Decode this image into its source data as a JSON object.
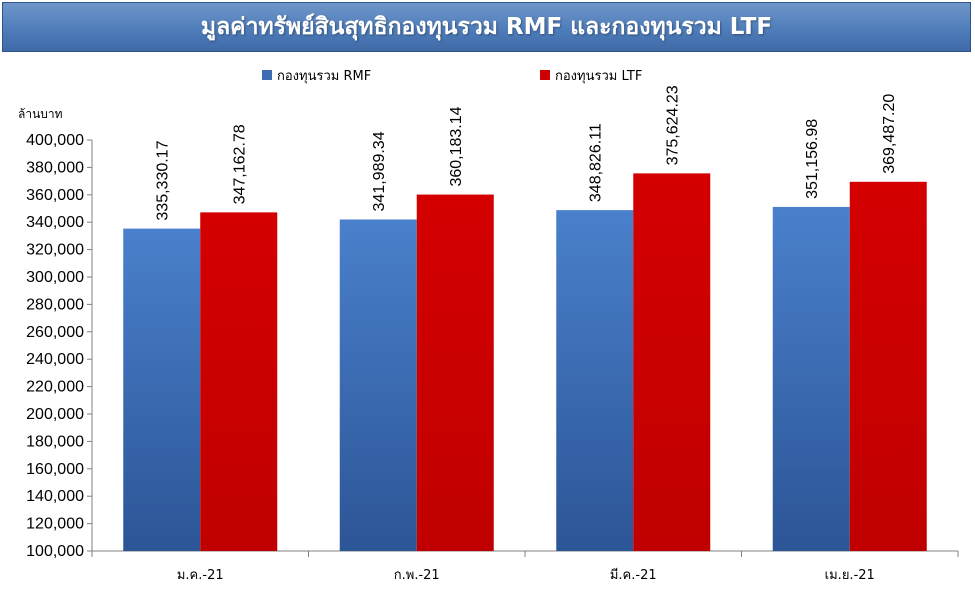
{
  "title": "มูลค่าทรัพย์สินสุทธิกองทุนรวม RMF  และกองทุนรวม LTF",
  "colors": {
    "rmf": "#3c6db3",
    "ltf": "#cc0000"
  },
  "chart_data": {
    "type": "bar",
    "ylabel": "ล้านบาท",
    "ylim": [
      100000,
      400000
    ],
    "ytick_step": 20000,
    "ytick_labels": [
      "100,000",
      "120,000",
      "140,000",
      "160,000",
      "180,000",
      "200,000",
      "220,000",
      "240,000",
      "260,000",
      "280,000",
      "300,000",
      "320,000",
      "340,000",
      "360,000",
      "380,000",
      "400,000"
    ],
    "categories": [
      "ม.ค.-21",
      "ก.พ.-21",
      "มี.ค.-21",
      "เม.ย.-21"
    ],
    "legend_position": "top",
    "grid": false,
    "series": [
      {
        "name": "กองทุนรวม RMF",
        "values": [
          335330.17,
          341989.34,
          348826.11,
          351156.98
        ],
        "labels": [
          "335,330.17",
          "341,989.34",
          "348,826.11",
          "351,156.98"
        ]
      },
      {
        "name": "กองทุนรวม LTF",
        "values": [
          347162.78,
          360183.14,
          375624.23,
          369487.2
        ],
        "labels": [
          "347,162.78",
          "360,183.14",
          "375,624.23",
          "369,487.20"
        ]
      }
    ]
  }
}
